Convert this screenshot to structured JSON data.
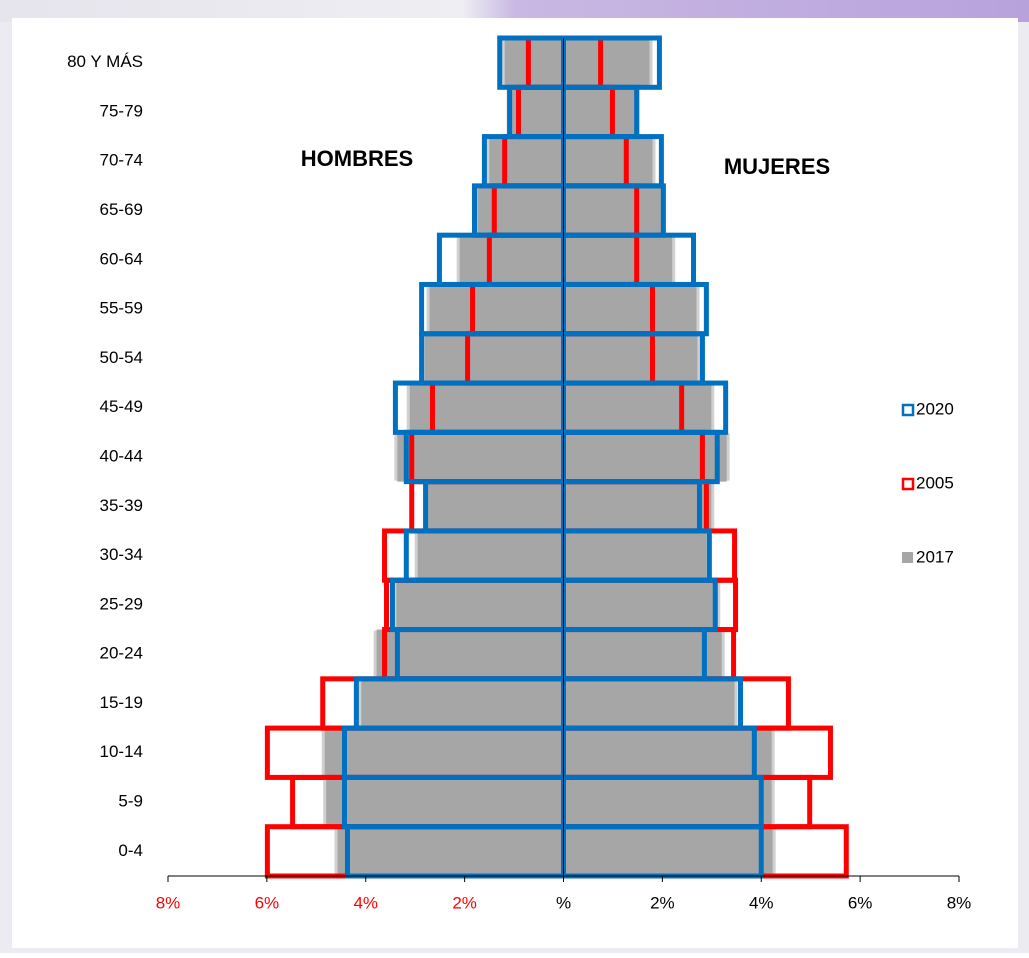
{
  "chart_data": {
    "type": "pyramid",
    "annotations": [
      "HOMBRES",
      "MUJERES"
    ],
    "categories": [
      "0-4",
      "5-9",
      "10-14",
      "15-19",
      "20-24",
      "25-29",
      "30-34",
      "35-39",
      "40-44",
      "45-49",
      "50-54",
      "55-59",
      "60-64",
      "65-69",
      "70-74",
      "75-79",
      "80 Y MÁS"
    ],
    "series": [
      {
        "name": "2017",
        "color": "#a6a6a6",
        "style": "filled",
        "men": [
          -4.57,
          -4.8,
          -4.83,
          -4.09,
          -3.78,
          -3.38,
          -2.95,
          -2.75,
          -3.36,
          -3.11,
          -2.81,
          -2.71,
          -2.1,
          -1.74,
          -1.5,
          -1.09,
          -1.19
        ],
        "women": [
          4.23,
          4.21,
          4.21,
          3.46,
          3.2,
          3.11,
          2.89,
          2.99,
          3.3,
          2.99,
          2.71,
          2.69,
          2.2,
          1.98,
          1.8,
          1.48,
          1.74
        ]
      },
      {
        "name": "2005",
        "color": "#ff0000",
        "style": "outline",
        "men": [
          -5.99,
          -5.48,
          -5.99,
          -4.87,
          -3.62,
          -3.58,
          -3.62,
          -3.07,
          -3.07,
          -2.65,
          -1.94,
          -1.84,
          -1.5,
          -1.4,
          -1.19,
          -0.91,
          -0.71
        ],
        "women": [
          5.72,
          4.98,
          5.4,
          4.55,
          3.44,
          3.48,
          3.46,
          2.89,
          2.81,
          2.39,
          1.8,
          1.8,
          1.48,
          1.48,
          1.27,
          0.99,
          0.75
        ]
      },
      {
        "name": "2020",
        "color": "#0070c0",
        "style": "outline",
        "men": [
          -4.37,
          -4.43,
          -4.43,
          -4.19,
          -3.36,
          -3.46,
          -3.18,
          -2.79,
          -3.18,
          -3.4,
          -2.87,
          -2.87,
          -2.51,
          -1.8,
          -1.6,
          -1.09,
          -1.29
        ],
        "women": [
          4.0,
          4.0,
          3.86,
          3.58,
          2.85,
          3.07,
          2.95,
          2.75,
          3.11,
          3.28,
          2.81,
          2.89,
          2.63,
          2.02,
          1.98,
          1.48,
          1.94
        ]
      }
    ],
    "legend_order": [
      2,
      1,
      0
    ],
    "xlim": [
      -8,
      8
    ],
    "xticks": [
      {
        "value": -8,
        "label": "8%"
      },
      {
        "value": -6,
        "label": "6%"
      },
      {
        "value": -4,
        "label": "4%"
      },
      {
        "value": -2,
        "label": "2%"
      },
      {
        "value": 0,
        "label": "%"
      },
      {
        "value": 2,
        "label": "2%"
      },
      {
        "value": 4,
        "label": "4%"
      },
      {
        "value": 6,
        "label": "6%"
      },
      {
        "value": 8,
        "label": "8%"
      }
    ],
    "xtick_label_colors": [
      "#ff0000",
      "#ff0000",
      "#ff0000",
      "#ff0000",
      "#000000",
      "#000000",
      "#000000",
      "#000000",
      "#000000"
    ]
  }
}
